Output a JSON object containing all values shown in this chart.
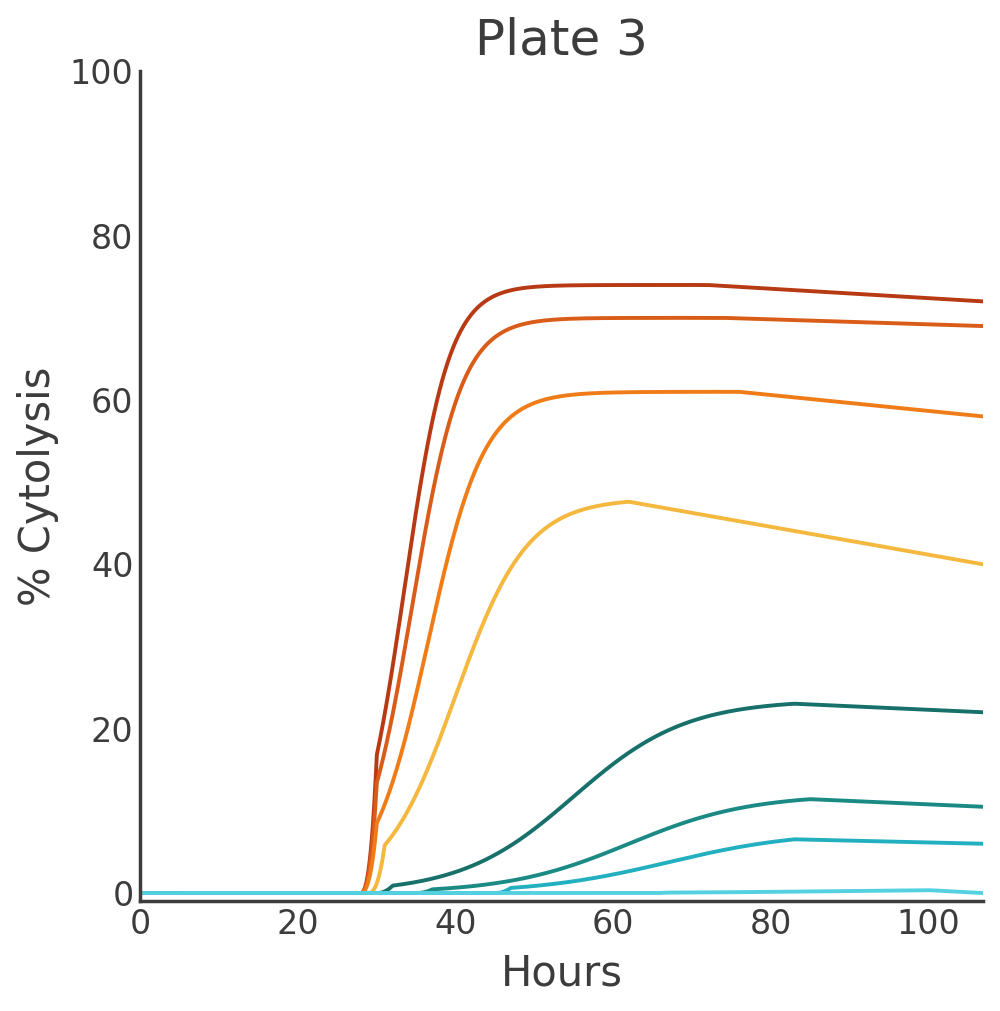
{
  "title": "Plate 3",
  "xlabel": "Hours",
  "ylabel": "% Cytolysis",
  "xlim": [
    0,
    107
  ],
  "ylim": [
    -1,
    100
  ],
  "xticks": [
    0,
    20,
    40,
    60,
    80,
    100
  ],
  "yticks": [
    0,
    20,
    40,
    60,
    80,
    100
  ],
  "background_color": "#ffffff",
  "title_fontsize": 36,
  "axis_label_fontsize": 30,
  "tick_fontsize": 24,
  "line_width": 2.8,
  "curves": [
    {
      "color": "#b83a14",
      "midpoint": 33.5,
      "steepness": 0.35,
      "plateau": 74.0,
      "peak_x": 72,
      "end_val": 72.0,
      "start_x": 28
    },
    {
      "color": "#d95c18",
      "midpoint": 34.5,
      "steepness": 0.32,
      "plateau": 70.0,
      "peak_x": 74,
      "end_val": 69.0,
      "start_x": 28
    },
    {
      "color": "#f07c18",
      "midpoint": 36.5,
      "steepness": 0.28,
      "plateau": 61.0,
      "peak_x": 76,
      "end_val": 58.0,
      "start_x": 28
    },
    {
      "color": "#f5b83e",
      "midpoint": 40.0,
      "steepness": 0.22,
      "plateau": 48.0,
      "peak_x": 62,
      "end_val": 40.0,
      "start_x": 29
    },
    {
      "color": "#17706a",
      "midpoint": 55.0,
      "steepness": 0.14,
      "plateau": 23.5,
      "peak_x": 83,
      "end_val": 22.0,
      "start_x": 30
    },
    {
      "color": "#1b8a84",
      "midpoint": 62.0,
      "steepness": 0.13,
      "plateau": 12.0,
      "peak_x": 85,
      "end_val": 10.5,
      "start_x": 35
    },
    {
      "color": "#22b0c0",
      "midpoint": 67.0,
      "steepness": 0.12,
      "plateau": 7.5,
      "peak_x": 83,
      "end_val": 6.0,
      "start_x": 45
    },
    {
      "color": "#55d0e0",
      "midpoint": 90.0,
      "steepness": 0.09,
      "plateau": 0.5,
      "peak_x": 100,
      "end_val": 0.0,
      "start_x": 65
    }
  ]
}
